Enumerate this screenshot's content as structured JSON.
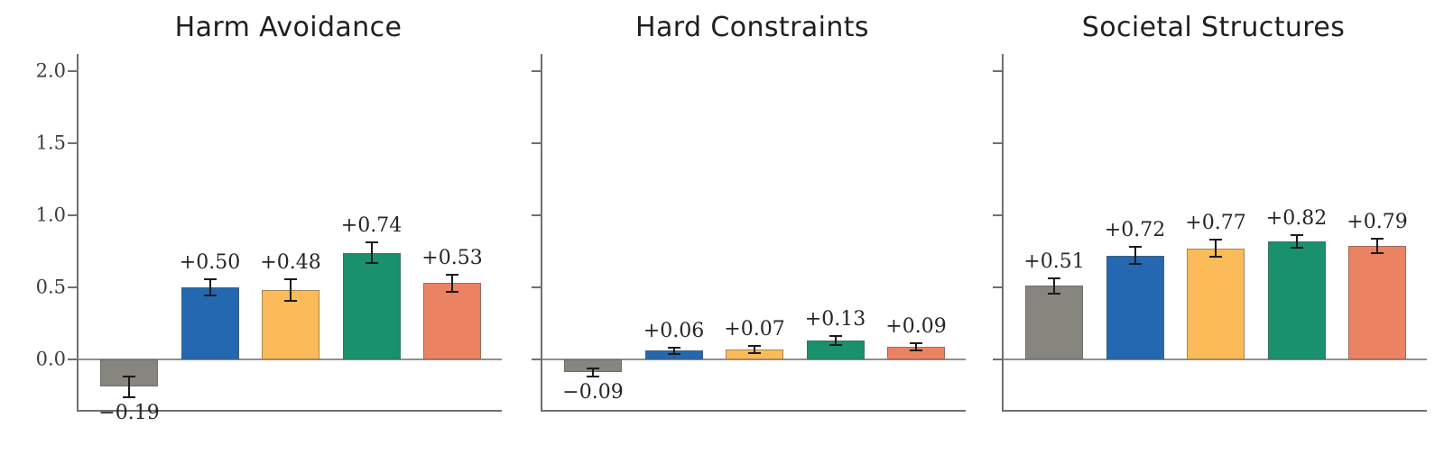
{
  "figure": {
    "background": "#ffffff"
  },
  "chart_data": [
    {
      "type": "bar",
      "title": "Harm Avoidance",
      "values": [
        -0.19,
        0.5,
        0.48,
        0.74,
        0.53
      ],
      "errors": [
        0.07,
        0.055,
        0.075,
        0.07,
        0.06
      ],
      "bar_labels": [
        "−0.19",
        "+0.50",
        "+0.48",
        "+0.74",
        "+0.53"
      ],
      "ylim": [
        -0.35,
        2.12
      ],
      "yticks": [
        0.0,
        0.5,
        1.0,
        1.5,
        2.0
      ],
      "ytick_labels": [
        "0.0",
        "0.5",
        "1.0",
        "1.5",
        "2.0"
      ],
      "show_ytick_labels": true,
      "grid": false,
      "legend": "none"
    },
    {
      "type": "bar",
      "title": "Hard Constraints",
      "values": [
        -0.09,
        0.06,
        0.07,
        0.13,
        0.09
      ],
      "errors": [
        0.03,
        0.02,
        0.025,
        0.03,
        0.025
      ],
      "bar_labels": [
        "−0.09",
        "+0.06",
        "+0.07",
        "+0.13",
        "+0.09"
      ],
      "ylim": [
        -0.35,
        2.12
      ],
      "yticks": [
        0.0,
        0.5,
        1.0,
        1.5,
        2.0
      ],
      "ytick_labels": [
        "0.0",
        "0.5",
        "1.0",
        "1.5",
        "2.0"
      ],
      "show_ytick_labels": false,
      "grid": false,
      "legend": "none"
    },
    {
      "type": "bar",
      "title": "Societal Structures",
      "values": [
        0.51,
        0.72,
        0.77,
        0.82,
        0.79
      ],
      "errors": [
        0.055,
        0.06,
        0.06,
        0.045,
        0.05
      ],
      "bar_labels": [
        "+0.51",
        "+0.72",
        "+0.77",
        "+0.82",
        "+0.79"
      ],
      "ylim": [
        -0.35,
        2.12
      ],
      "yticks": [
        0.0,
        0.5,
        1.0,
        1.5,
        2.0
      ],
      "ytick_labels": [
        "0.0",
        "0.5",
        "1.0",
        "1.5",
        "2.0"
      ],
      "show_ytick_labels": false,
      "grid": false,
      "legend": "none"
    }
  ],
  "style": {
    "bar_colors": [
      "#86857e",
      "#2368b0",
      "#fabb58",
      "#19906e",
      "#eb8262"
    ],
    "error_bar_color": "#1b1b1b",
    "spine_color": "#6f6f6f",
    "zero_line_color": "#8f8f8f",
    "title_color": "#1f1f1f",
    "tick_label_color": "#3d3d3d",
    "value_label_color": "#262626"
  }
}
